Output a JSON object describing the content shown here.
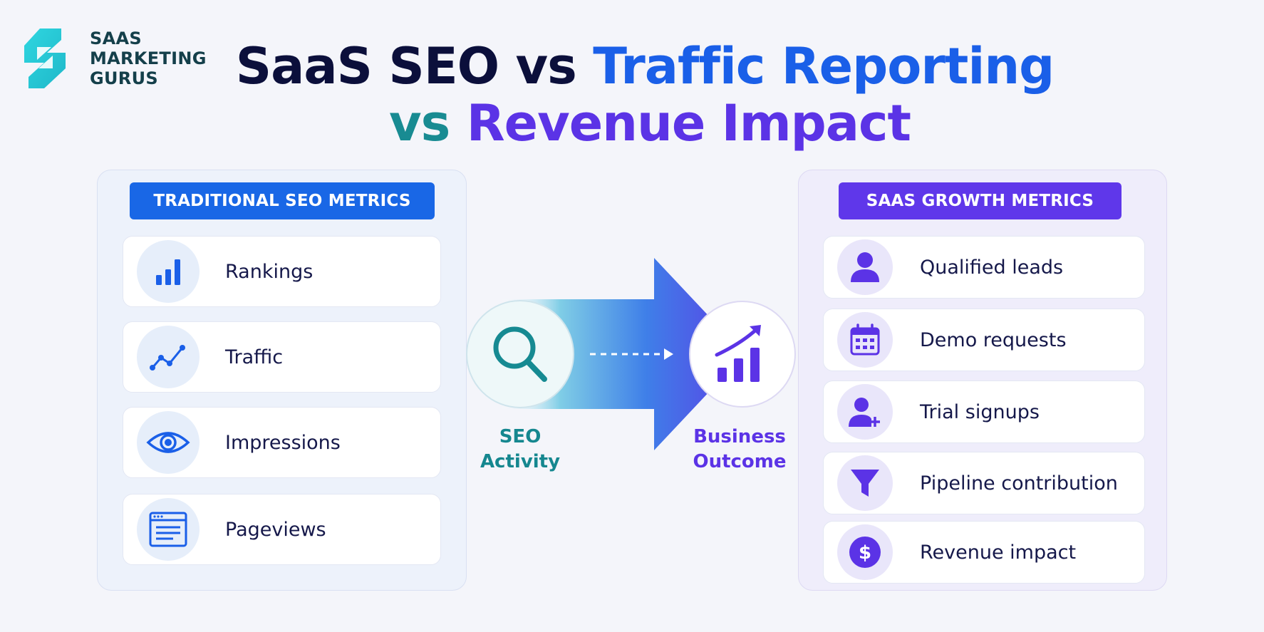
{
  "logo": {
    "lines": [
      "SAAS",
      "MARKETING",
      "GURUS"
    ]
  },
  "title": {
    "line1": {
      "part1": "SaaS SEO vs ",
      "part2": "Traffic Reporting"
    },
    "line2": {
      "part1": "vs ",
      "part2": "Revenue Impact"
    }
  },
  "left_panel": {
    "heading": "TRADITIONAL SEO METRICS",
    "items": [
      {
        "label": "Rankings",
        "icon": "bar-chart-icon"
      },
      {
        "label": "Traffic",
        "icon": "line-chart-icon"
      },
      {
        "label": "Impressions",
        "icon": "eye-icon"
      },
      {
        "label": "Pageviews",
        "icon": "browser-page-icon"
      }
    ]
  },
  "right_panel": {
    "heading": "SAAS GROWTH METRICS",
    "items": [
      {
        "label": "Qualified leads",
        "icon": "user-icon"
      },
      {
        "label": "Demo requests",
        "icon": "calendar-icon"
      },
      {
        "label": "Trial signups",
        "icon": "user-plus-icon"
      },
      {
        "label": "Pipeline contribution",
        "icon": "funnel-icon"
      },
      {
        "label": "Revenue impact",
        "icon": "dollar-icon"
      }
    ]
  },
  "flow": {
    "start_label": [
      "SEO",
      "Activity"
    ],
    "end_label": [
      "Business",
      "Outcome"
    ],
    "start_icon": "search-icon",
    "end_icon": "growth-chart-icon"
  },
  "colors": {
    "blue": "#1a5fe8",
    "purple": "#5b33e6",
    "teal": "#188b92",
    "dark": "#0b0f3b"
  }
}
